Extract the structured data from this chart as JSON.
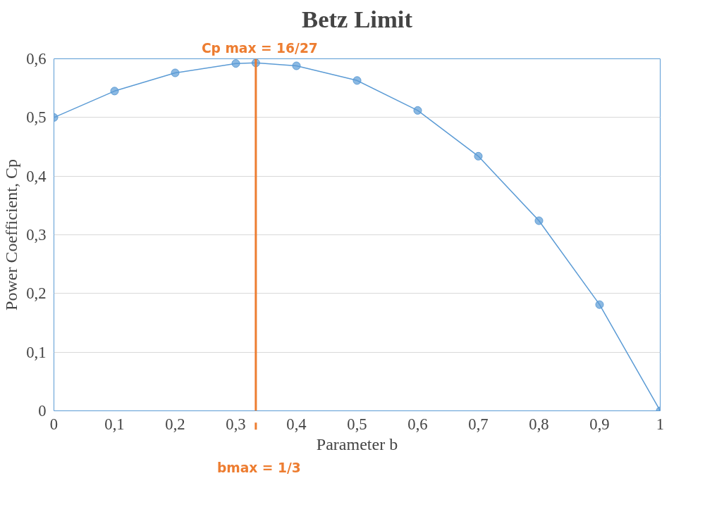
{
  "chart_data": {
    "type": "line",
    "title": "Betz Limit",
    "xlabel": "Parameter b",
    "ylabel": "Power Coefficient, Cp",
    "x": [
      0,
      0.1,
      0.2,
      0.3,
      0.333,
      0.4,
      0.5,
      0.6,
      0.7,
      0.8,
      0.9,
      1
    ],
    "series": [
      {
        "color": "#5b9bd5",
        "values": [
          0.5,
          0.545,
          0.576,
          0.592,
          0.593,
          0.588,
          0.563,
          0.512,
          0.434,
          0.324,
          0.181,
          0
        ]
      }
    ],
    "marker": "circle",
    "line_style": "solid",
    "grid": "y",
    "xlim": [
      0,
      1
    ],
    "ylim": [
      0,
      0.6
    ],
    "xticks": [
      0,
      {
        "value": 0.1,
        "label": "0,1"
      },
      {
        "value": 0.2,
        "label": "0,2"
      },
      {
        "value": 0.3,
        "label": "0,3"
      },
      {
        "value": 0.4,
        "label": "0,4"
      },
      {
        "value": 0.5,
        "label": "0,5"
      },
      {
        "value": 0.6,
        "label": "0,6"
      },
      {
        "value": 0.7,
        "label": "0,7"
      },
      {
        "value": 0.8,
        "label": "0,8"
      },
      {
        "value": 0.9,
        "label": "0,9"
      },
      1
    ],
    "yticks": [
      0,
      {
        "value": 0.1,
        "label": "0,1"
      },
      {
        "value": 0.2,
        "label": "0,2"
      },
      {
        "value": 0.3,
        "label": "0,3"
      },
      {
        "value": 0.4,
        "label": "0,4"
      },
      {
        "value": 0.5,
        "label": "0,5"
      },
      {
        "value": 0.6,
        "label": "0,6"
      }
    ],
    "ref_lines": [
      {
        "axis": "x",
        "value": 0.333,
        "color": "#ed7d31"
      }
    ],
    "annotations": [
      "Cp max = 16/27",
      "bmax = 1/3"
    ]
  }
}
